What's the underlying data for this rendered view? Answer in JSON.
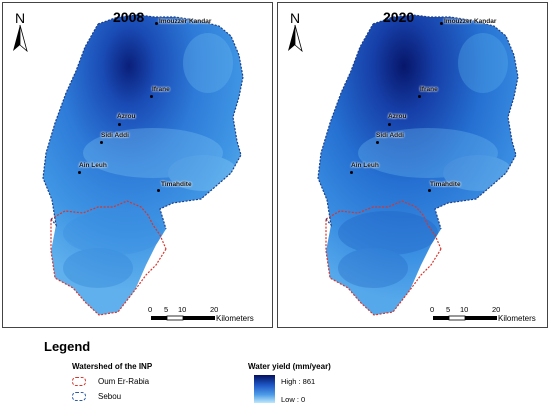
{
  "panels": [
    {
      "year": "2008"
    },
    {
      "year": "2020"
    }
  ],
  "north_label": "N",
  "cities": {
    "imouzzer": "Imouzzer Kandar",
    "ifrane": "Ifrane",
    "azrou": "Azrou",
    "sidi_addi": "Sidi Addi",
    "ain_leuh": "Ain Leuh",
    "timahdite": "Timahdite"
  },
  "scale": {
    "ticks": [
      "0",
      "5",
      "10",
      "20"
    ],
    "unit": "Kilometers"
  },
  "legend": {
    "title": "Legend",
    "watershed_title": "Watershed of the INP",
    "watersheds": [
      {
        "label": "Oum Er-Rabia",
        "color": "#d9342b"
      },
      {
        "label": "Sebou",
        "color": "#2a5aa8"
      }
    ],
    "water_yield_title": "Water yield (mm/year)",
    "high_label": "High : 861",
    "low_label": "Low : 0",
    "ramp_colors": [
      "#06115e",
      "#1d55c4",
      "#4c9be8",
      "#bfe8fb"
    ]
  }
}
